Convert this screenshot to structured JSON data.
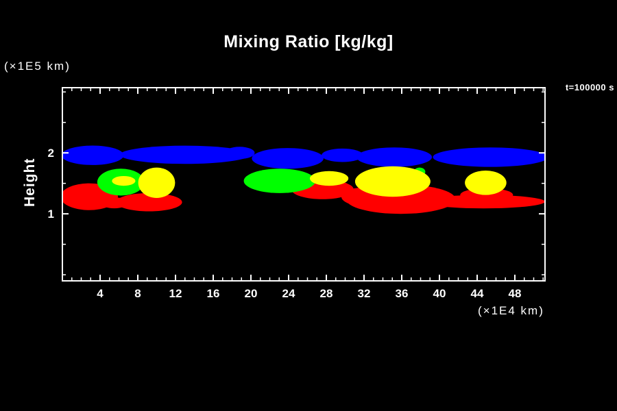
{
  "chart_data": {
    "type": "heatmap",
    "title": "Mixing Ratio [kg/kg]",
    "annotation": "t=100000 s",
    "ylabel": "Height",
    "ylabel_units": "(×1E5 km)",
    "xlabel_units": "(×1E4 km)",
    "xlim": [
      0,
      51.2
    ],
    "ylim": [
      -0.1,
      3.07
    ],
    "xticks": [
      4,
      8,
      12,
      16,
      20,
      24,
      28,
      32,
      36,
      40,
      44,
      48
    ],
    "yticks": [
      1,
      2
    ],
    "x_minor_step": 1,
    "y_minor_step": 0.5,
    "grid": false,
    "background_color": "#000000",
    "frame_color": "#ffffff",
    "text_color": "#ffffff",
    "clouds": [
      {
        "name": "upper-cloud-band",
        "color": "#0000ff",
        "blobs": [
          [
            3.2,
            1.96,
            3.3,
            0.16
          ],
          [
            13.0,
            1.97,
            6.9,
            0.15
          ],
          [
            18.8,
            2.0,
            1.6,
            0.1
          ],
          [
            23.9,
            1.91,
            3.8,
            0.17
          ],
          [
            29.7,
            1.96,
            2.2,
            0.11
          ],
          [
            35.2,
            1.93,
            4.0,
            0.16
          ],
          [
            45.4,
            1.93,
            6.1,
            0.16
          ]
        ]
      },
      {
        "name": "low-mixing-ratio-cloud",
        "color": "#ff0000",
        "blobs": [
          [
            2.84,
            1.28,
            3.05,
            0.22
          ],
          [
            5.5,
            1.18,
            1.45,
            0.09
          ],
          [
            9.2,
            1.19,
            3.5,
            0.15
          ],
          [
            27.6,
            1.4,
            3.3,
            0.16
          ],
          [
            31.9,
            1.28,
            2.3,
            0.15
          ],
          [
            35.9,
            1.24,
            5.8,
            0.24
          ],
          [
            44.7,
            1.2,
            6.5,
            0.11
          ],
          [
            45.0,
            1.31,
            2.8,
            0.11
          ]
        ]
      },
      {
        "name": "mid-mixing-ratio-cloud",
        "color": "#00ff00",
        "blobs": [
          [
            6.2,
            1.52,
            2.5,
            0.22
          ],
          [
            23.05,
            1.54,
            3.8,
            0.2
          ],
          [
            33.0,
            1.63,
            0.95,
            0.09
          ],
          [
            37.9,
            1.69,
            0.6,
            0.07
          ]
        ]
      },
      {
        "name": "high-mixing-ratio-cloud",
        "color": "#ffff00",
        "blobs": [
          [
            6.5,
            1.54,
            1.24,
            0.08
          ],
          [
            10.0,
            1.51,
            1.96,
            0.25
          ],
          [
            28.3,
            1.58,
            2.04,
            0.12
          ],
          [
            35.05,
            1.53,
            4.0,
            0.25
          ],
          [
            44.9,
            1.51,
            2.2,
            0.2
          ]
        ]
      }
    ]
  }
}
